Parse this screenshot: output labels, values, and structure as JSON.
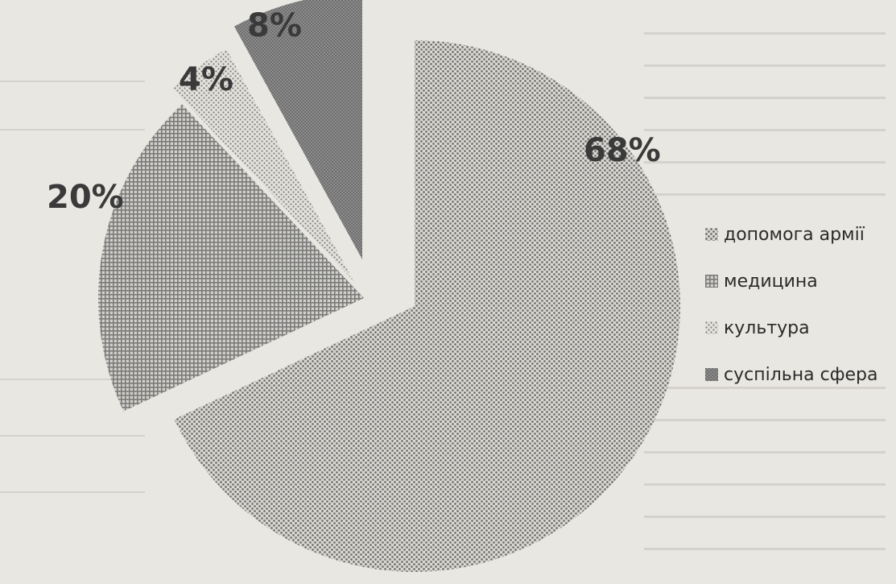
{
  "chart_data": {
    "type": "pie",
    "categories": [
      "допомога армії",
      "медицина",
      "культура",
      "суспільна сфера"
    ],
    "values": [
      68,
      20,
      4,
      8
    ],
    "data_labels": [
      "68%",
      "20%",
      "4%",
      "8%"
    ],
    "exploded": true,
    "legend_position": "right",
    "colors": [
      "#6e6e6e",
      "#7f7f7f",
      "#8f8f8f",
      "#787878"
    ]
  }
}
